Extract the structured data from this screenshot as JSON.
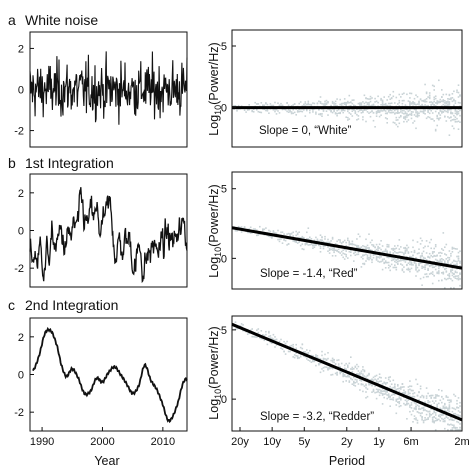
{
  "chart_data": [
    {
      "type": "line",
      "panel": "a",
      "title": "White noise",
      "x_range": [
        1988,
        2014
      ],
      "ylim": [
        -2.8,
        2.8
      ],
      "yticks": [
        "2",
        "0",
        "-2"
      ],
      "ytick_values": [
        2,
        0,
        -2
      ],
      "xticks": [],
      "xlabel": "",
      "process": "white noise",
      "approx_range": [
        -2.5,
        2.5
      ]
    },
    {
      "type": "scatter",
      "panel": "a-spectrum",
      "ylabel": "Log10(Power/Hz)",
      "xlabel": "",
      "x_log_periods_years": [
        20,
        0.1667
      ],
      "fit_line": {
        "start": 0.0,
        "end": 0.0
      },
      "annotation": "Slope = 0, “White”",
      "slope": 0
    },
    {
      "type": "line",
      "panel": "b",
      "title": "1st Integration",
      "x_range": [
        1988,
        2014
      ],
      "ylim": [
        -3.0,
        3.0
      ],
      "yticks": [
        "2",
        "0",
        "-2"
      ],
      "ytick_values": [
        2,
        0,
        -2
      ],
      "xticks": [],
      "xlabel": "",
      "process": "integrated white noise",
      "approx_range": [
        -2.7,
        2.3
      ]
    },
    {
      "type": "scatter",
      "panel": "b-spectrum",
      "ylabel": "Log10(Power/Hz)",
      "xlabel": "",
      "fit_line": {
        "start": 2.2,
        "end": -0.7
      },
      "annotation": "Slope = -1.4, “Red”",
      "slope": -1.4
    },
    {
      "type": "line",
      "panel": "c",
      "title": "2nd Integration",
      "x_range": [
        1988,
        2014
      ],
      "ylim": [
        -3.0,
        3.0
      ],
      "yticks": [
        "2",
        "0",
        "-2"
      ],
      "ytick_values": [
        2,
        0,
        -2
      ],
      "xticks": [
        "1990",
        "2000",
        "2010"
      ],
      "xtick_values": [
        1990,
        2000,
        2010
      ],
      "xlabel": "Year",
      "anchor_points": [
        [
          1988.5,
          0.2
        ],
        [
          1989.5,
          1.0
        ],
        [
          1990.5,
          2.2
        ],
        [
          1991.5,
          2.3
        ],
        [
          1992.5,
          1.5
        ],
        [
          1993.2,
          0.5
        ],
        [
          1994.0,
          -0.1
        ],
        [
          1995.0,
          0.3
        ],
        [
          1996.0,
          -0.2
        ],
        [
          1997.0,
          -1.0
        ],
        [
          1998.0,
          -0.9
        ],
        [
          1999.0,
          -0.2
        ],
        [
          2000.0,
          -0.4
        ],
        [
          2001.0,
          0.1
        ],
        [
          2002.0,
          0.4
        ],
        [
          2003.0,
          0.0
        ],
        [
          2004.0,
          -0.5
        ],
        [
          2005.0,
          -1.0
        ],
        [
          2006.0,
          -0.6
        ],
        [
          2007.0,
          0.5
        ],
        [
          2008.0,
          -0.3
        ],
        [
          2009.0,
          -0.8
        ],
        [
          2010.0,
          -1.6
        ],
        [
          2010.8,
          -2.4
        ],
        [
          2011.5,
          -2.3
        ],
        [
          2012.5,
          -1.5
        ],
        [
          2013.3,
          -0.5
        ],
        [
          2014.0,
          -0.2
        ]
      ]
    },
    {
      "type": "scatter",
      "panel": "c-spectrum",
      "ylabel": "Log10(Power/Hz)",
      "xlabel": "Period",
      "yticks": [
        "5",
        "0"
      ],
      "ytick_values": [
        5,
        0
      ],
      "ylim": [
        -2.3,
        6.0
      ],
      "xticks": [
        "20y",
        "10y",
        "5y",
        "2y",
        "1y",
        "6m",
        "2m"
      ],
      "xtick_periods_years": [
        20,
        10,
        5,
        2,
        1,
        0.5,
        0.1667
      ],
      "fit_line": {
        "start": 5.4,
        "end": -1.5
      },
      "annotation": "Slope = -3.2, “Redder”",
      "slope": -3.2
    }
  ],
  "spectrum_ticks": {
    "a": {
      "labels": [
        "5",
        "0"
      ],
      "values": [
        5,
        0
      ]
    },
    "b": {
      "labels": [
        "5",
        "0"
      ],
      "values": [
        5,
        0
      ]
    },
    "c": {
      "labels": [
        "5",
        "0"
      ],
      "values": [
        5,
        0
      ]
    }
  },
  "colors": {
    "line": "#111111",
    "scatter": "#c9d3d6",
    "fit": "#000000"
  }
}
